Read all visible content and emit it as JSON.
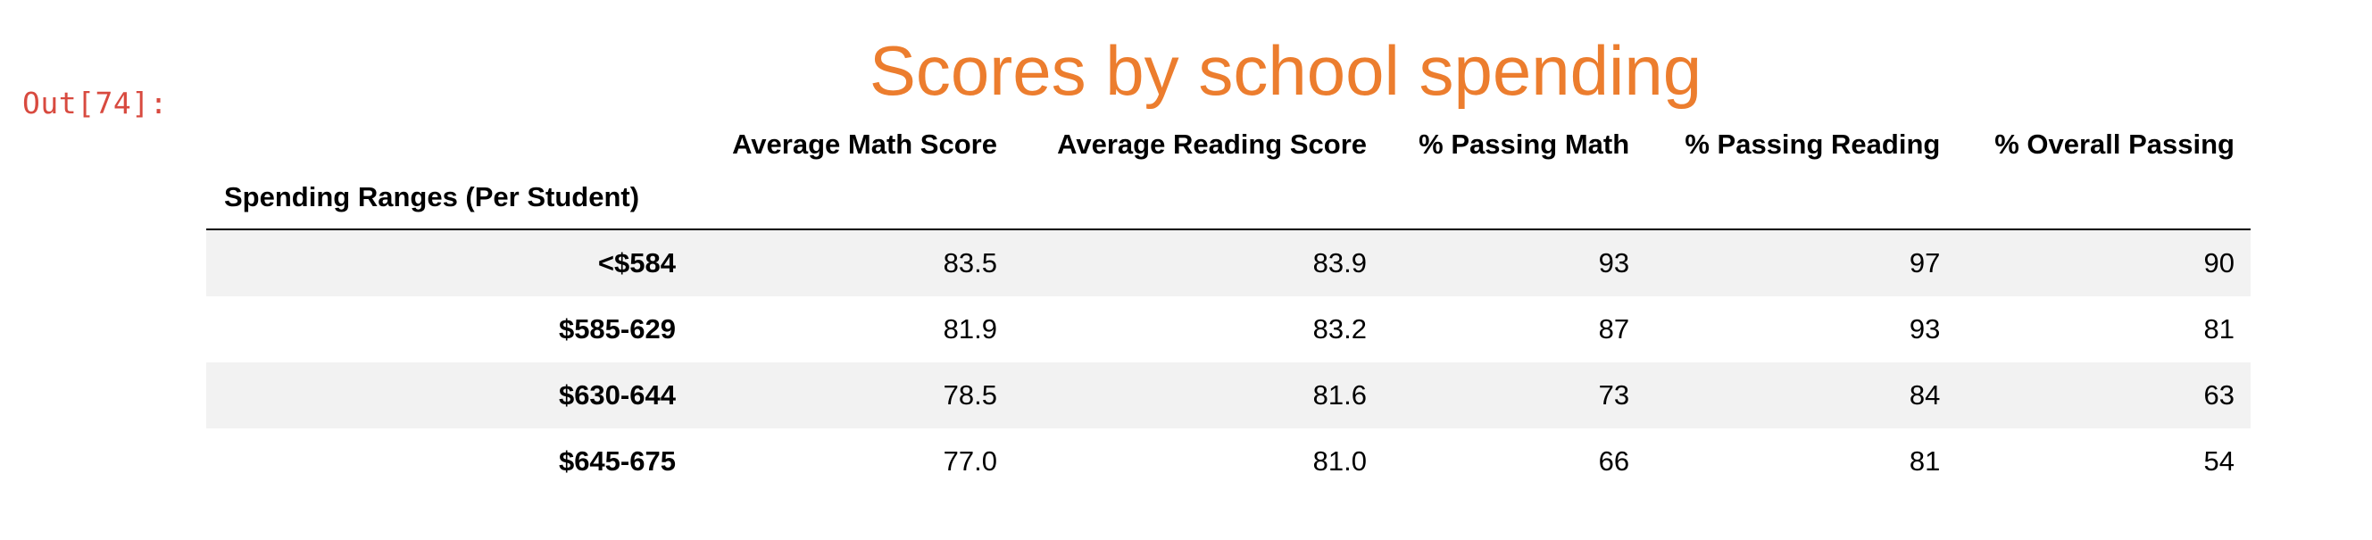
{
  "cell": {
    "prompt": "Out[74]:"
  },
  "output": {
    "title": "Scores by school spending",
    "index_name": "Spending Ranges (Per Student)",
    "columns": [
      "Average Math Score",
      "Average Reading Score",
      "% Passing Math",
      "% Passing Reading",
      "% Overall Passing"
    ],
    "rows": [
      {
        "index": "<$584",
        "values": [
          "83.5",
          "83.9",
          "93",
          "97",
          "90"
        ]
      },
      {
        "index": "$585-629",
        "values": [
          "81.9",
          "83.2",
          "87",
          "93",
          "81"
        ]
      },
      {
        "index": "$630-644",
        "values": [
          "78.5",
          "81.6",
          "73",
          "84",
          "63"
        ]
      },
      {
        "index": "$645-675",
        "values": [
          "77.0",
          "81.0",
          "66",
          "81",
          "54"
        ]
      }
    ],
    "colors": {
      "title": "#ec7d2e",
      "prompt": "#d84a3f",
      "row_stripe": "#f2f2f2"
    }
  }
}
